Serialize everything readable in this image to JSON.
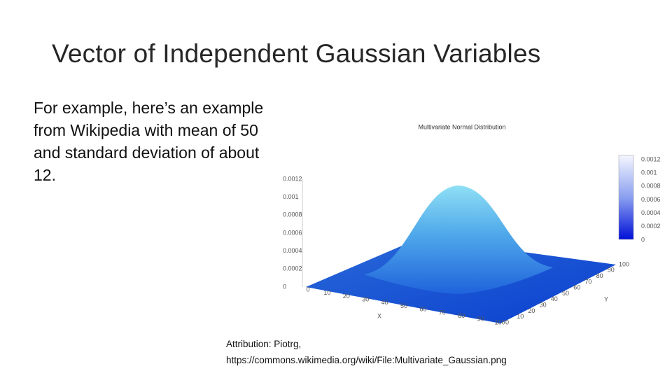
{
  "title": "Vector of Independent Gaussian Variables",
  "body": "For example, here’s an example from Wikipedia with mean of 50 and standard deviation of about 12.",
  "figure": {
    "title": "Multivariate Normal Distribution",
    "z_ticks": [
      "0.0012",
      "0.001",
      "0.0008",
      "0.0006",
      "0.0004",
      "0.0002",
      "0"
    ],
    "x_ticks": [
      "0",
      "10",
      "20",
      "30",
      "40",
      "50",
      "60",
      "70",
      "80",
      "90",
      "100"
    ],
    "y_ticks": [
      "0",
      "10",
      "20",
      "30",
      "40",
      "50",
      "60",
      "70",
      "80",
      "90",
      "100"
    ],
    "x_label": "X",
    "y_label": "Y",
    "colorbar_ticks": [
      "0.0012",
      "0.001",
      "0.0008",
      "0.0006",
      "0.0004",
      "0.0002",
      "0"
    ]
  },
  "attribution": [
    "Attribution: Piotrg,",
    "https://commons.wikimedia.org/wiki/File:Multivariate_Gaussian.png"
  ]
}
